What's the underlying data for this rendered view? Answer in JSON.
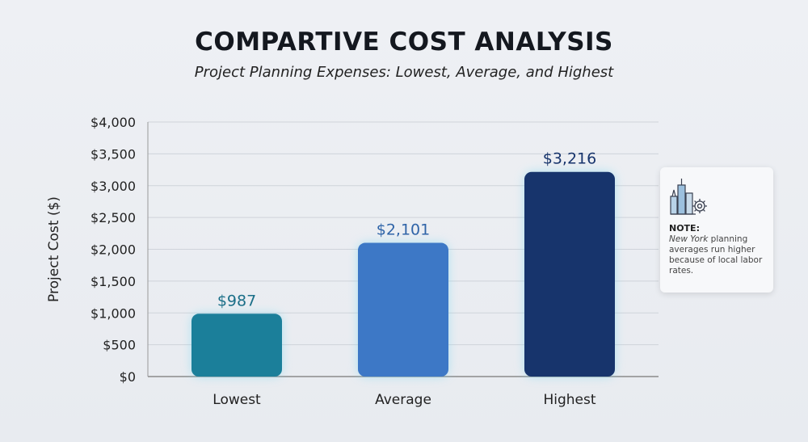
{
  "chart_data": {
    "type": "bar",
    "title": "COMPARTIVE COST ANALYSIS",
    "subtitle": "Project Planning Expenses: Lowest, Average, and Highest",
    "xlabel": "",
    "ylabel": "Project Cost ($)",
    "categories": [
      "Lowest",
      "Average",
      "Highest"
    ],
    "values": [
      987,
      2101,
      3216
    ],
    "data_labels": [
      "$987",
      "$2,101",
      "$3,216"
    ],
    "bar_colors": [
      "#1b7f9a",
      "#3d78c6",
      "#17346c"
    ],
    "ylim": [
      0,
      4000
    ],
    "yticks": [
      0,
      500,
      1000,
      1500,
      2000,
      2500,
      3000,
      3500,
      4000
    ],
    "ytick_labels": [
      "$0",
      "$500",
      "$1,000",
      "$1,500",
      "$2,000",
      "$2,500",
      "$3,000",
      "$3,500",
      "$4,000"
    ],
    "grid": true,
    "legend": "none"
  },
  "note": {
    "icon": "city-gear-icon",
    "heading": "NOTE:",
    "text_italic": "New York",
    "text": " planning averages run higher because of local labor rates."
  }
}
